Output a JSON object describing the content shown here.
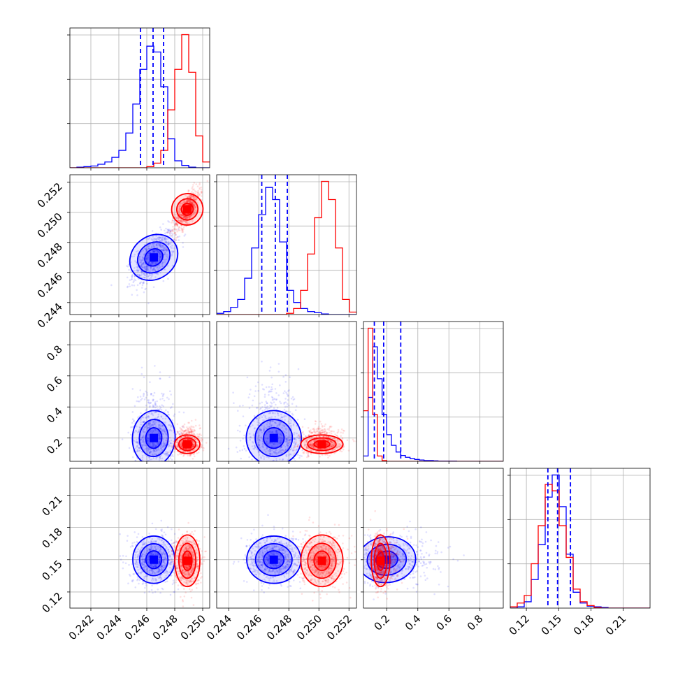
{
  "chart_data": {
    "type": "corner",
    "parameters": [
      {
        "range": [
          0.2405,
          0.2505
        ],
        "ticks": [
          0.242,
          0.244,
          0.246,
          0.248,
          0.25
        ],
        "tick_labels": [
          "0.242",
          "0.244",
          "0.246",
          "0.248",
          "0.250"
        ]
      },
      {
        "range": [
          0.2432,
          0.2525
        ],
        "ticks": [
          0.244,
          0.246,
          0.248,
          0.25,
          0.252
        ],
        "tick_labels": [
          "0.244",
          "0.246",
          "0.248",
          "0.250",
          "0.252"
        ]
      },
      {
        "range": [
          0.05,
          0.95
        ],
        "ticks": [
          0.2,
          0.4,
          0.6,
          0.8
        ],
        "tick_labels": [
          "0.2",
          "0.4",
          "0.6",
          "0.8"
        ]
      },
      {
        "range": [
          0.105,
          0.235
        ],
        "ticks": [
          0.12,
          0.15,
          0.18,
          0.21
        ],
        "tick_labels": [
          "0.12",
          "0.15",
          "0.18",
          "0.21"
        ]
      }
    ],
    "series": [
      {
        "color": "#0000ff",
        "mean": [
          0.2465,
          0.247,
          0.2,
          0.15
        ],
        "std": [
          0.00075,
          0.0009,
          0.09,
          0.011
        ],
        "corr": [
          [
            1,
            0.6,
            -0.05,
            0.0
          ],
          [
            0.6,
            1,
            -0.05,
            0.0
          ],
          [
            -0.05,
            -0.05,
            1,
            0.1
          ],
          [
            0.0,
            0.0,
            0.1,
            1
          ]
        ]
      },
      {
        "color": "#ff0000",
        "mean": [
          0.2489,
          0.2502,
          0.16,
          0.149
        ],
        "std": [
          0.00045,
          0.0007,
          0.03,
          0.012
        ],
        "corr": [
          [
            1,
            0.75,
            0.0,
            0.0
          ],
          [
            0.75,
            1,
            0.0,
            0.0
          ],
          [
            0.0,
            0.0,
            1,
            0.0
          ],
          [
            0.0,
            0.0,
            0.0,
            1
          ]
        ]
      }
    ],
    "histograms": [
      {
        "bins": [
          0.2405,
          0.2505
        ],
        "series": [
          {
            "color": "#0000ff",
            "values": [
              0,
              1,
              2,
              3,
              6,
              10,
              18,
              30,
              60,
              110,
              170,
              210,
              200,
              140,
              50,
              12,
              4,
              1,
              0,
              0
            ]
          },
          {
            "color": "#ff0000",
            "values": [
              0,
              0,
              0,
              0,
              0,
              0,
              0,
              0,
              0,
              0,
              0,
              2,
              8,
              30,
              100,
              170,
              230,
              165,
              55,
              10
            ]
          }
        ]
      },
      {
        "bins": [
          0.2432,
          0.2525
        ],
        "series": [
          {
            "color": "#0000ff",
            "values": [
              2,
              5,
              12,
              25,
              60,
              110,
              165,
              210,
              190,
              120,
              40,
              20,
              10,
              5,
              3,
              1,
              0,
              0,
              0,
              0
            ]
          },
          {
            "color": "#ff0000",
            "values": [
              0,
              0,
              0,
              0,
              0,
              0,
              0,
              0,
              0,
              0,
              2,
              10,
              40,
              100,
              160,
              220,
              190,
              110,
              25,
              4
            ]
          }
        ]
      },
      {
        "bins": [
          0.05,
          0.95
        ],
        "series": [
          {
            "color": "#0000ff",
            "values": [
              20,
              240,
              430,
              310,
              175,
              100,
              60,
              35,
              22,
              15,
              10,
              7,
              5,
              3,
              3,
              2,
              1,
              1,
              1,
              1,
              0,
              0,
              0,
              0,
              0,
              0,
              0,
              0,
              0,
              0
            ]
          },
          {
            "color": "#ff0000",
            "values": [
              190,
              500,
              175,
              20,
              3,
              0,
              0,
              0,
              0,
              0,
              0,
              0,
              0,
              0,
              0,
              0,
              0,
              0,
              0,
              0,
              0,
              0,
              0,
              0,
              0,
              0,
              0,
              0,
              0,
              0
            ]
          }
        ]
      },
      {
        "bins": [
          0.105,
          0.235
        ],
        "series": [
          {
            "color": "#0000ff",
            "values": [
              0,
              2,
              10,
              45,
              100,
              175,
              210,
              160,
              85,
              25,
              8,
              3,
              2,
              1,
              0,
              0,
              0,
              0,
              0,
              0
            ]
          },
          {
            "color": "#ff0000",
            "values": [
              2,
              8,
              20,
              70,
              130,
              195,
              185,
              130,
              80,
              30,
              10,
              4,
              1,
              0,
              0,
              0,
              0,
              0,
              0,
              0
            ]
          }
        ]
      }
    ],
    "quantile_lines": [
      {
        "color": "#0000ff",
        "values": [
          0.24555,
          0.24645,
          0.2472
        ]
      },
      {
        "color": "#0000ff",
        "values": [
          0.2462,
          0.2471,
          0.2479
        ]
      },
      {
        "color": "#0000ff",
        "values": [
          0.12,
          0.18,
          0.29
        ]
      },
      {
        "color": "#0000ff",
        "values": [
          0.14,
          0.149,
          0.161
        ]
      }
    ],
    "grid": true
  }
}
